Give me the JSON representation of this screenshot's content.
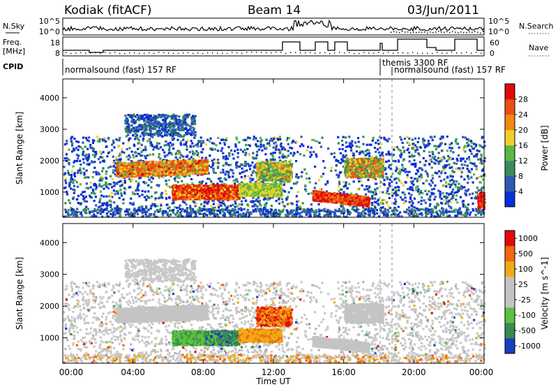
{
  "header": {
    "site": "Kodiak (fitACF)",
    "beam": "Beam 14",
    "date": "03/Jun/2011"
  },
  "strips": {
    "nsky_label": "N.Sky",
    "nsky_ticks": [
      "10^5",
      "10^0"
    ],
    "nsearch_label": "N.Search",
    "nsearch_ticks": [
      "10^5",
      "10^0"
    ],
    "freq_label": "Freq.",
    "freq_unit": "[MHz]",
    "freq_ticks": [
      "18",
      "8"
    ],
    "nave_label": "Nave",
    "nave_ticks": [
      "60",
      "0"
    ],
    "cpid_label": "CPID",
    "cpid_segments": [
      "normalsound (fast) 157 RF",
      "themis 3300 RF",
      "normalsound (fast) 157 RF"
    ]
  },
  "colors": {
    "power": [
      "#0a2ed8",
      "#2e58b4",
      "#3c8b5a",
      "#58b848",
      "#f0d028",
      "#f08a10",
      "#e85018",
      "#e00a0a"
    ],
    "velocity": [
      "#1a3cc0",
      "#3a8a4e",
      "#5cc23e",
      "#c4c4c4",
      "#c4c4c4",
      "#f0ac14",
      "#f06810",
      "#e00a0a"
    ]
  },
  "chart_data": [
    {
      "type": "heatmap",
      "name": "power",
      "ylabel": "Slant Range [km]",
      "ylim": [
        200,
        4600
      ],
      "yticks": [
        "4000",
        "3000",
        "2000",
        "1000"
      ],
      "colorbar_label": "Power [dB]",
      "colorbar_ticks": [
        "28",
        "24",
        "20",
        "16",
        "12",
        "8",
        "4"
      ],
      "grid": false
    },
    {
      "type": "heatmap",
      "name": "velocity",
      "ylabel": "Slant Range [km]",
      "ylim": [
        200,
        4600
      ],
      "yticks": [
        "4000",
        "3000",
        "2000",
        "1000"
      ],
      "colorbar_label": "Velocity [m s^-1]",
      "colorbar_ticks": [
        "1000",
        "500",
        "100",
        "25",
        "-25",
        "-100",
        "-500",
        "-1000"
      ],
      "xlabel": "Time UT",
      "xticks": [
        "00:00",
        "04:00",
        "08:00",
        "12:00",
        "16:00",
        "20:00",
        "00:00"
      ],
      "grid": false
    }
  ]
}
